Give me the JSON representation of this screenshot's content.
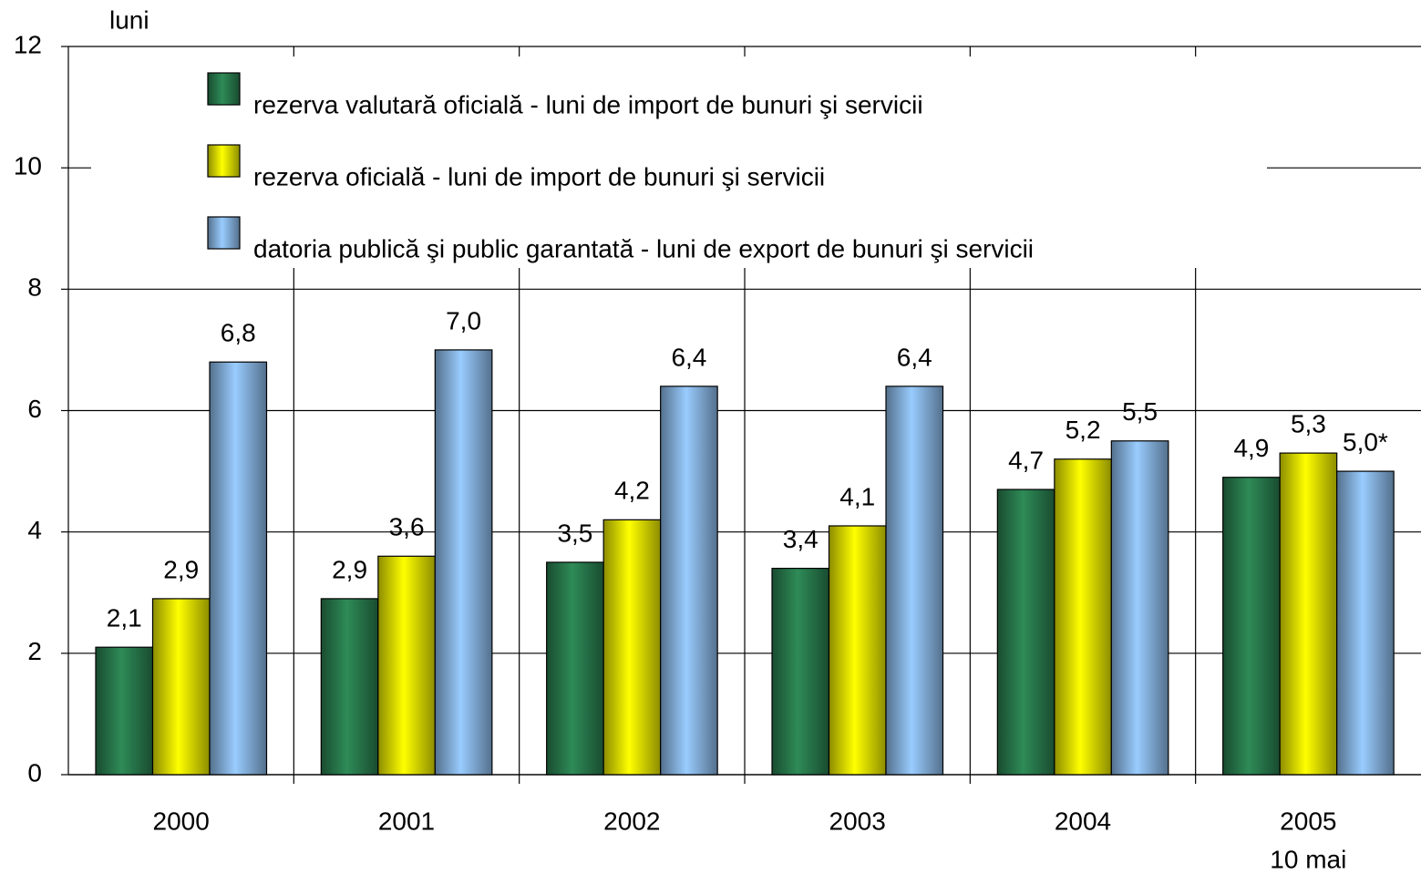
{
  "chart_data": {
    "type": "bar",
    "y_label": "luni",
    "categories": [
      "2000",
      "2001",
      "2002",
      "2003",
      "2004",
      "2005"
    ],
    "note": "10 mai",
    "series": [
      {
        "name": "rezerva valutară oficială - luni de import de bunuri şi servicii",
        "color": "#2e8b57",
        "values": [
          2.1,
          2.9,
          3.5,
          3.4,
          4.7,
          4.9
        ],
        "value_labels": [
          "2,1",
          "2,9",
          "3,5",
          "3,4",
          "4,7",
          "4,9"
        ]
      },
      {
        "name": "rezerva oficială - luni de import de bunuri şi servicii",
        "color": "#ffff00",
        "values": [
          2.9,
          3.6,
          4.2,
          4.1,
          5.2,
          5.3
        ],
        "value_labels": [
          "2,9",
          "3,6",
          "4,2",
          "4,1",
          "5,2",
          "5,3"
        ]
      },
      {
        "name": "datoria publică şi public garantată - luni de export de bunuri şi servicii",
        "color": "#99ccff",
        "values": [
          6.8,
          7.0,
          6.4,
          6.4,
          5.5,
          5.0
        ],
        "value_labels": [
          "6,8",
          "7,0",
          "6,4",
          "6,4",
          "5,5",
          "5,0*"
        ]
      }
    ],
    "ylim": [
      0,
      12
    ],
    "yticks": [
      0,
      2,
      4,
      6,
      8,
      10,
      12
    ],
    "grid": true
  }
}
